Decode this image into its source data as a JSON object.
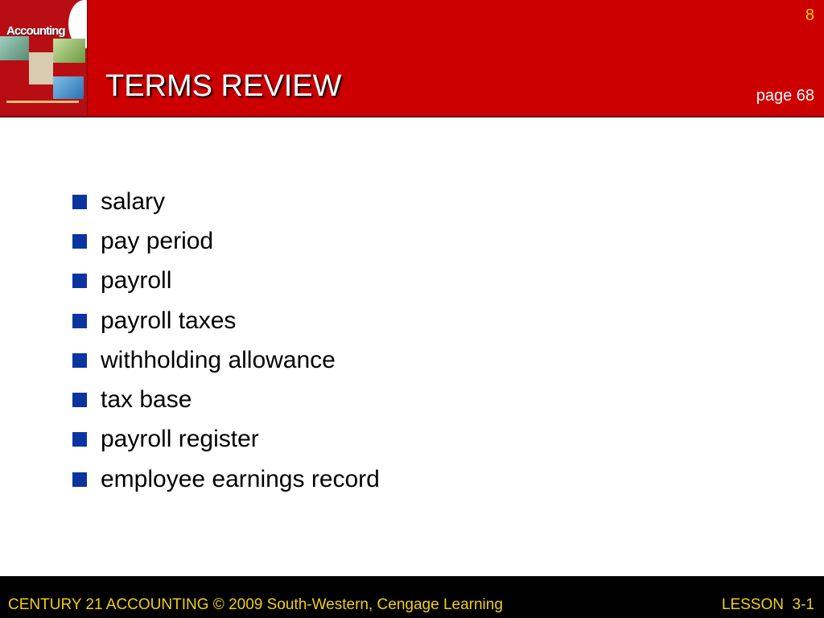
{
  "header": {
    "title": "TERMS REVIEW",
    "slide_number": "8",
    "page_ref": "page 68",
    "logo_text": "Century 21 Accounting"
  },
  "terms": [
    "salary",
    "pay period",
    "payroll",
    "payroll taxes",
    "withholding allowance",
    "tax base",
    "payroll register",
    "employee earnings record"
  ],
  "footer": {
    "left": "CENTURY 21 ACCOUNTING © 2009 South-Western, Cengage Learning",
    "right": "LESSON  3-1"
  },
  "colors": {
    "header": "#cc0000",
    "bullet": "#0a34a0",
    "footer_text": "#f0cf1a"
  }
}
